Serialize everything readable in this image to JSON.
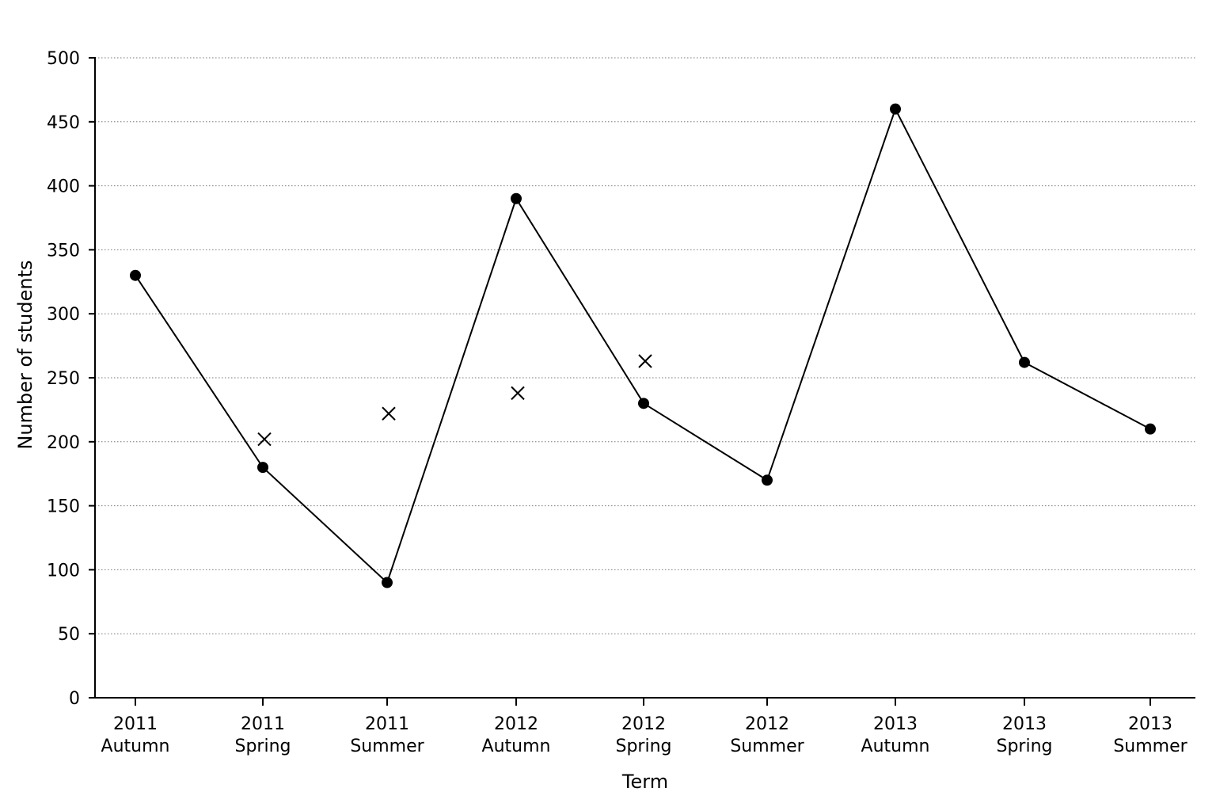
{
  "chart_data": {
    "type": "line",
    "xlabel": "Term",
    "ylabel": "Number of students",
    "ylim": [
      0,
      500
    ],
    "yticks": [
      0,
      50,
      100,
      150,
      200,
      250,
      300,
      350,
      400,
      450,
      500
    ],
    "grid": "horizontal dotted",
    "categories": [
      [
        "2011",
        "Autumn"
      ],
      [
        "2011",
        "Spring"
      ],
      [
        "2011",
        "Summer"
      ],
      [
        "2012",
        "Autumn"
      ],
      [
        "2012",
        "Spring"
      ],
      [
        "2012",
        "Summer"
      ],
      [
        "2013",
        "Autumn"
      ],
      [
        "2013",
        "Spring"
      ],
      [
        "2013",
        "Summer"
      ]
    ],
    "series": [
      {
        "marker": "circle",
        "style": "line",
        "values": [
          330,
          180,
          90,
          390,
          230,
          170,
          460,
          262,
          210
        ]
      },
      {
        "marker": "cross",
        "style": "points",
        "values": [
          null,
          202,
          222,
          238,
          263,
          null,
          null,
          null,
          null
        ]
      }
    ]
  }
}
